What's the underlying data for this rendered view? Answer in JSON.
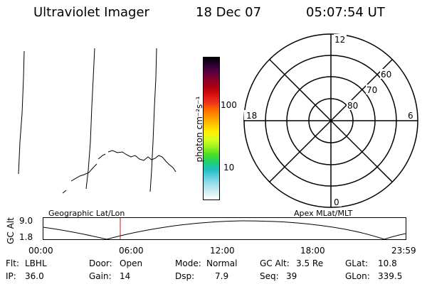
{
  "header": {
    "title": "Ultraviolet Imager",
    "date": "18 Dec 07",
    "time": "05:07:54 UT"
  },
  "colorbar": {
    "unit_label": "photon cm⁻²s⁻¹",
    "ticks": [
      "100",
      "10"
    ],
    "colors": [
      "#000000",
      "#2b0030",
      "#5a0044",
      "#8a0028",
      "#b00010",
      "#d81010",
      "#f03020",
      "#ff6a00",
      "#ff9a00",
      "#ffc800",
      "#fff000",
      "#d8ff20",
      "#9af020",
      "#4ae020",
      "#20d070",
      "#20c0c0",
      "#60d0e0",
      "#a0e0ec",
      "#d0eef4",
      "#ffffff"
    ]
  },
  "polar_plot": {
    "mlt_labels": {
      "top": "12",
      "left": "18",
      "right": "6",
      "bottom": "0"
    },
    "lat_labels": [
      "60",
      "70",
      "80"
    ]
  },
  "orbit_panel": {
    "left_title": "Geographic Lat/Lon",
    "right_title": "Apex MLat/MLT",
    "axis_label": "GC Alt",
    "y_ticks": [
      "9.0",
      "1.8"
    ],
    "x_ticks": [
      "00:00",
      "06:00",
      "12:00",
      "18:00",
      "23:59"
    ]
  },
  "info": {
    "filter": {
      "label": "Flt:",
      "value": "LBHL"
    },
    "ip": {
      "label": "IP:",
      "value": "36.0"
    },
    "door": {
      "label": "Door:",
      "value": "Open"
    },
    "gain": {
      "label": "Gain:",
      "value": "14"
    },
    "mode": {
      "label": "Mode:",
      "value": "Normal"
    },
    "dsp": {
      "label": "Dsp:",
      "value": "7.9"
    },
    "gc_alt": {
      "label": "GC Alt:",
      "value": "3.5 Re"
    },
    "seq": {
      "label": "Seq:",
      "value": "39"
    },
    "glat": {
      "label": "GLat:",
      "value": "10.8"
    },
    "glon": {
      "label": "GLon:",
      "value": "339.5"
    }
  }
}
